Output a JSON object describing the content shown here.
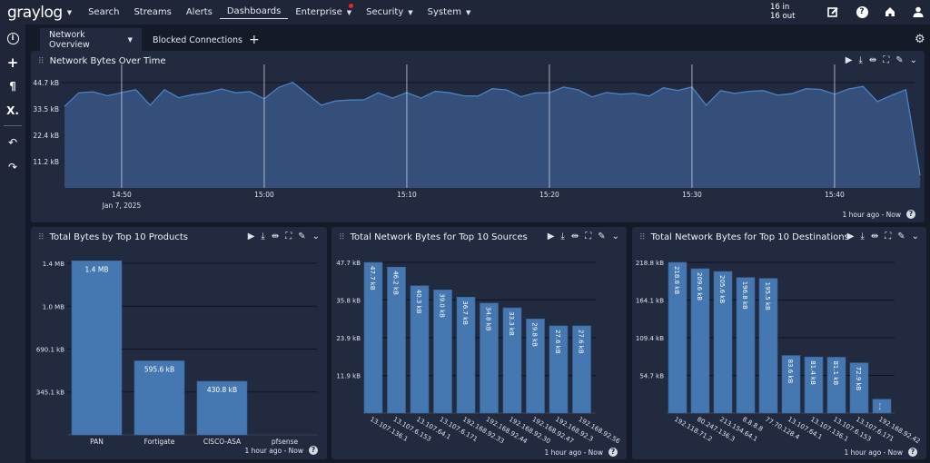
{
  "nav": {
    "logo": "graylog",
    "items": [
      "Search",
      "Streams",
      "Alerts",
      "Dashboards",
      "Enterprise",
      "Security",
      "System"
    ],
    "active": "Dashboards",
    "throughput_in": "16 in",
    "throughput_out": "16 out",
    "icons": [
      "edit-icon",
      "help-icon",
      "home-icon",
      "user-icon"
    ]
  },
  "sidebar": {
    "icons": [
      "info-icon",
      "plus-icon",
      "paragraph-icon",
      "variable-icon",
      "undo-icon",
      "redo-icon"
    ]
  },
  "tabs": [
    {
      "label": "Network Overview",
      "active": true
    },
    {
      "label": "Blocked Connections",
      "active": false
    }
  ],
  "add_tab": "+",
  "colors": {
    "bar": "#4577b0",
    "area": "#34507a",
    "line": "#4a82c4",
    "accent_dot": "#ee2222"
  },
  "footer": "1 hour ago - Now",
  "panels": {
    "p1": {
      "title": "Network Bytes Over Time"
    },
    "p2": {
      "title": "Total Bytes by Top 10 Products"
    },
    "p3": {
      "title": "Total Network Bytes for Top 10 Sources"
    },
    "p4": {
      "title": "Total Network Bytes for Top 10 Destinations"
    }
  },
  "chart_data": [
    {
      "type": "area",
      "title": "Network Bytes Over Time",
      "x_unit": "time",
      "date_label": "Jan 7, 2025",
      "x_ticks": [
        "14:50",
        "15:00",
        "15:10",
        "15:20",
        "15:30",
        "15:40"
      ],
      "y_ticks": [
        "11.2 kB",
        "22.4 kB",
        "33.5 kB",
        "44.7 kB"
      ],
      "y_tick_values": [
        11.2,
        22.4,
        33.5,
        44.7
      ],
      "ylim": [
        0,
        44.7
      ],
      "y_unit": "kB",
      "x": [
        "14:46",
        "14:47",
        "14:48",
        "14:49",
        "14:50",
        "14:51",
        "14:52",
        "14:53",
        "14:54",
        "14:55",
        "14:56",
        "14:57",
        "14:58",
        "14:59",
        "15:00",
        "15:01",
        "15:02",
        "15:03",
        "15:04",
        "15:05",
        "15:06",
        "15:07",
        "15:08",
        "15:09",
        "15:10",
        "15:11",
        "15:12",
        "15:13",
        "15:14",
        "15:15",
        "15:16",
        "15:17",
        "15:18",
        "15:19",
        "15:20",
        "15:21",
        "15:22",
        "15:23",
        "15:24",
        "15:25",
        "15:26",
        "15:27",
        "15:28",
        "15:29",
        "15:30",
        "15:31",
        "15:32",
        "15:33",
        "15:34",
        "15:35",
        "15:36",
        "15:37",
        "15:38",
        "15:39",
        "15:40",
        "15:41",
        "15:42",
        "15:43",
        "15:44",
        "15:45",
        "15:46"
      ],
      "values": [
        34.6,
        40.4,
        40.8,
        39.1,
        40.5,
        41.7,
        35.1,
        41.7,
        38.3,
        39.6,
        40.4,
        42.0,
        40.4,
        40.9,
        37.8,
        42.6,
        44.8,
        40.0,
        35.1,
        36.9,
        37.3,
        37.4,
        40.4,
        38.1,
        40.5,
        38.1,
        41.0,
        40.4,
        39.1,
        39.0,
        42.1,
        41.6,
        38.7,
        40.3,
        40.4,
        42.8,
        41.7,
        38.6,
        40.5,
        39.8,
        40.1,
        39.0,
        42.5,
        41.4,
        42.8,
        35.1,
        41.3,
        40.1,
        41.0,
        41.3,
        39.4,
        40.0,
        42.1,
        41.8,
        39.8,
        42.0,
        43.1,
        36.7,
        39.3,
        41.7,
        5.3
      ],
      "grid": true
    },
    {
      "type": "bar",
      "title": "Total Bytes by Top 10 Products",
      "categories": [
        "PAN",
        "Fortigate",
        "CISCO-ASA",
        "pfsense"
      ],
      "values": [
        1400,
        595.6,
        430.8,
        0
      ],
      "y_unit": "kB",
      "data_labels": [
        "1.4 MB",
        "595.6 kB",
        "430.8 kB",
        ""
      ],
      "y_ticks": [
        "345.1 kB",
        "690.1 kB",
        "1.0 MB",
        "1.4 MB"
      ],
      "y_tick_values": [
        345.1,
        690.1,
        1035.2,
        1380.3
      ],
      "ylim": [
        0,
        1380.3
      ],
      "grid": true
    },
    {
      "type": "bar",
      "title": "Total Network Bytes for Top 10 Sources",
      "categories": [
        "13.107.136.1",
        "13.107.6.153",
        "13.107.64.1",
        "13.107.6.171",
        "192.168.92.33",
        "192.168.92.44",
        "192.168.92.30",
        "192.168.92.47",
        "192.168.92.3",
        "192.168.92.56"
      ],
      "values": [
        47.7,
        46.2,
        40.3,
        39.0,
        36.7,
        34.8,
        33.3,
        29.8,
        27.6,
        27.6
      ],
      "y_unit": "kB",
      "data_labels": [
        "47.7 kB",
        "46.2 kB",
        "40.3 kB",
        "39.0 kB",
        "36.7 kB",
        "34.8 kB",
        "33.3 kB",
        "29.8 kB",
        "27.6 kB",
        "27.6 kB"
      ],
      "y_ticks": [
        "11.9 kB",
        "23.9 kB",
        "35.8 kB",
        "47.7 kB"
      ],
      "y_tick_values": [
        11.9,
        23.9,
        35.8,
        47.7
      ],
      "ylim": [
        0,
        47.7
      ],
      "grid": true
    },
    {
      "type": "bar",
      "title": "Total Network Bytes for Top 10 Destinations",
      "categories": [
        "192.118.71.2",
        "80.247.136.3",
        "213.154.64.1",
        "8.8.8.8",
        "77.70.128.4",
        "13.107.64.1",
        "13.107.136.1",
        "13.107.6.153",
        "13.107.6.171",
        "192.168.92.42"
      ],
      "values": [
        218.8,
        209.6,
        205.6,
        196.8,
        195.5,
        83.6,
        81.4,
        81.1,
        72.9,
        20.1
      ],
      "y_unit": "kB",
      "data_labels": [
        "218.8 kB",
        "209.6 kB",
        "205.6 kB",
        "196.8 kB",
        "195.5 kB",
        "83.6 kB",
        "81.4 kB",
        "81.1 kB",
        "72.9 kB",
        "20.1 kB"
      ],
      "y_ticks": [
        "54.7 kB",
        "109.4 kB",
        "164.1 kB",
        "218.8 kB"
      ],
      "y_tick_values": [
        54.7,
        109.4,
        164.1,
        218.8
      ],
      "ylim": [
        0,
        218.8
      ],
      "grid": true
    }
  ]
}
